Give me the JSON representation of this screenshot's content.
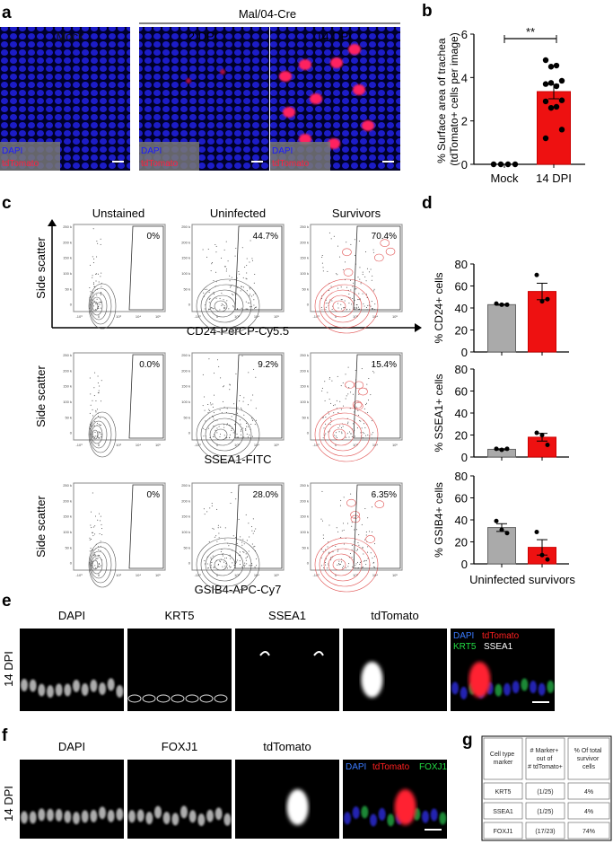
{
  "panels": {
    "a": {
      "letter": "a",
      "group_label": "Mal/04-Cre",
      "columns": [
        "Mock",
        "2 DPI",
        "14 DPI"
      ],
      "legend": [
        "DAPI",
        "tdTomato"
      ]
    },
    "b": {
      "letter": "b"
    },
    "c": {
      "letter": "c",
      "columns": [
        "Unstained",
        "Uninfected",
        "Survivors"
      ],
      "y_label": "Side scatter",
      "rows": [
        {
          "x_label": "CD24-PerCP-Cy5.5",
          "gates": [
            "0%",
            "44.7%",
            "70.4%"
          ]
        },
        {
          "x_label": "SSEA1-FITC",
          "gates": [
            "0.0%",
            "9.2%",
            "15.4%"
          ]
        },
        {
          "x_label": "GSIB4-APC-Cy7",
          "gates": [
            "0%",
            "28.0%",
            "6.35%"
          ]
        }
      ],
      "y_ticks": [
        "250 k",
        "200 k",
        "150 k",
        "100 k",
        "50 k",
        "0"
      ],
      "x_ticks": [
        "-10³",
        "0",
        "10³",
        "10⁴",
        "10⁵"
      ]
    },
    "d": {
      "letter": "d",
      "x_label": "Uninfected survivors"
    },
    "e": {
      "letter": "e",
      "row_label": "14 DPI",
      "columns": [
        "DAPI",
        "KRT5",
        "SSEA1",
        "tdTomato"
      ],
      "merge_legend": [
        "DAPI",
        "tdTomato",
        "KRT5",
        "SSEA1"
      ]
    },
    "f": {
      "letter": "f",
      "row_label": "14 DPI",
      "columns": [
        "DAPI",
        "FOXJ1",
        "tdTomato"
      ],
      "merge_legend": [
        "DAPI",
        "tdTomato",
        "FOXJ1"
      ]
    },
    "g": {
      "letter": "g",
      "headers": [
        "Cell type marker",
        "# Marker+ out of # tdTomato+",
        "% Of total survivor cells"
      ],
      "rows": [
        [
          "KRT5",
          "(1/25)",
          "4%"
        ],
        [
          "SSEA1",
          "(1/25)",
          "4%"
        ],
        [
          "FOXJ1",
          "(17/23)",
          "74%"
        ]
      ]
    }
  },
  "colors": {
    "red": "#ee1111",
    "gray": "#aaaaaa",
    "dapi": "#1a1aff",
    "tdtomato": "#ff2040",
    "krt5": "#22cc44"
  },
  "chart_data": [
    {
      "type": "bar",
      "panel": "b",
      "ylabel": "% Surface area of trachea (tdTomato+ cells per image)",
      "categories": [
        "Mock",
        "14 DPI"
      ],
      "values": [
        0,
        3.35
      ],
      "error": [
        0,
        0.33
      ],
      "ylim": [
        0,
        6
      ],
      "yticks": [
        "0",
        "2",
        "4",
        "6"
      ],
      "significance": "**",
      "points": [
        [
          0,
          0,
          0,
          0
        ],
        [
          4.8,
          4.5,
          4.55,
          3.85,
          3.7,
          3.75,
          3.6,
          2.95,
          2.9,
          2.6,
          2.65,
          1.6,
          1.2
        ]
      ]
    },
    {
      "type": "bar",
      "panel": "d",
      "ylabel": "% CD24+ cells",
      "categories": [
        "Uninfected",
        "survivors"
      ],
      "values": [
        43,
        55
      ],
      "error": [
        0.5,
        7.5
      ],
      "ylim": [
        0,
        80
      ],
      "yticks": [
        "0",
        "20",
        "40",
        "60",
        "80"
      ],
      "points": [
        [
          44,
          43,
          43
        ],
        [
          70,
          46,
          48
        ]
      ]
    },
    {
      "type": "bar",
      "panel": "d",
      "ylabel": "% SSEA1+ cells",
      "categories": [
        "Uninfected",
        "survivors"
      ],
      "values": [
        7,
        18
      ],
      "error": [
        0.5,
        3.5
      ],
      "ylim": [
        0,
        80
      ],
      "yticks": [
        "0",
        "20",
        "40",
        "60",
        "80"
      ],
      "points": [
        [
          7.5,
          6.5,
          7.5
        ],
        [
          22,
          20,
          11
        ]
      ]
    },
    {
      "type": "bar",
      "panel": "d",
      "ylabel": "% GSIB4+ cells",
      "categories": [
        "Uninfected",
        "survivors"
      ],
      "values": [
        33,
        15
      ],
      "error": [
        3.5,
        7
      ],
      "ylim": [
        0,
        80
      ],
      "yticks": [
        "0",
        "20",
        "40",
        "60",
        "80"
      ],
      "points": [
        [
          39,
          31,
          28
        ],
        [
          29,
          8,
          4
        ]
      ]
    }
  ]
}
